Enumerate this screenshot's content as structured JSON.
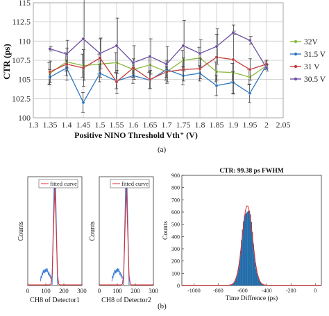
{
  "colors": {
    "s32": "#8bb83e",
    "s31_5": "#2e78c2",
    "s31": "#c43b3b",
    "s30_5": "#6b4ea0",
    "bar": "#2b7bbd",
    "fit": "#e32b2b",
    "noise": "#3f7fd6"
  },
  "captions": {
    "a": "(a)",
    "b": "(b)"
  },
  "chart_data": [
    {
      "type": "line",
      "title": "",
      "xlabel": "Positive NINO Threshold Vth⁺ (V)",
      "ylabel": "CTR (ps)",
      "xlim": [
        1.3,
        2.05
      ],
      "ylim": [
        100,
        115
      ],
      "x_ticks": [
        "1.3",
        "1.35",
        "1.4",
        "1.45",
        "1.5",
        "1.55",
        "1.6",
        "1.65",
        "1.7",
        "1.75",
        "1.8",
        "1.85",
        "1.9",
        "1.95",
        "2",
        "2.05"
      ],
      "y_ticks": [
        "100",
        "102.5",
        "105",
        "107.5",
        "110",
        "112.5",
        "115"
      ],
      "grid": true,
      "legend_position": "right",
      "x": [
        1.35,
        1.4,
        1.45,
        1.5,
        1.55,
        1.6,
        1.65,
        1.7,
        1.75,
        1.8,
        1.85,
        1.9,
        1.95,
        2.0
      ],
      "series": [
        {
          "name": "32V",
          "color_key": "s32",
          "values": [
            105.8,
            107.3,
            106.8,
            107.0,
            107.2,
            106.3,
            106.9,
            106.0,
            107.5,
            107.8,
            106.0,
            105.9,
            105.3,
            106.8
          ],
          "err": [
            1.4,
            1.2,
            1.5,
            1.3,
            1.3,
            1.0,
            1.0,
            1.1,
            1.3,
            1.4,
            1.3,
            1.2,
            1.0,
            0.5
          ]
        },
        {
          "name": "31.5 V",
          "color_key": "s31_5",
          "values": [
            105.3,
            106.5,
            102.0,
            105.8,
            104.8,
            105.5,
            104.9,
            106.3,
            105.5,
            105.8,
            104.2,
            104.6,
            103.2,
            106.9
          ],
          "err": [
            1.0,
            1.0,
            1.3,
            1.1,
            1.0,
            1.0,
            1.1,
            1.0,
            1.2,
            1.0,
            1.3,
            1.4,
            1.2,
            0.6
          ]
        },
        {
          "name": "31 V",
          "color_key": "s31",
          "values": [
            106.0,
            107.0,
            106.5,
            107.8,
            104.7,
            106.5,
            105.0,
            106.0,
            106.3,
            106.4,
            107.9,
            107.6,
            106.3,
            107.0
          ],
          "err": [
            1.4,
            2.1,
            2.4,
            2.5,
            1.5,
            1.2,
            1.2,
            1.5,
            1.5,
            1.3,
            3.0,
            4.5,
            1.4,
            0.5
          ]
        },
        {
          "name": "30.5 V",
          "color_key": "s30_5",
          "values": [
            109.0,
            108.3,
            110.3,
            108.4,
            109.4,
            107.2,
            108.0,
            107.0,
            109.4,
            108.4,
            109.3,
            111.1,
            110.1,
            106.5
          ],
          "err": [
            0.3,
            1.8,
            5.4,
            2.0,
            3.6,
            2.2,
            2.3,
            2.3,
            3.3,
            1.8,
            2.3,
            0.2,
            0.5,
            0.4
          ]
        }
      ]
    },
    {
      "type": "histogram",
      "xlabel": "CH8 of Detector1",
      "ylabel": "Counts",
      "xlim": [
        0,
        300
      ],
      "x_ticks": [
        "0",
        "100",
        "200",
        "300"
      ],
      "legend": "fitted curve",
      "noise_cluster_x": [
        70,
        130
      ],
      "peak_x": 150,
      "peak_fraction": 0.9
    },
    {
      "type": "histogram",
      "xlabel": "CH8 of Detector2",
      "ylabel": "Counts",
      "xlim": [
        0,
        300
      ],
      "x_ticks": [
        "0",
        "100",
        "200",
        "300"
      ],
      "legend": "fitted curve",
      "noise_cluster_x": [
        70,
        130
      ],
      "peak_x": 150,
      "peak_fraction": 0.9
    },
    {
      "type": "histogram",
      "title": "CTR: 99.38 ps FWHM",
      "xlabel": "Time Diffrence (ps)",
      "ylabel": "Counts",
      "xlim": [
        -1100,
        50
      ],
      "ylim": [
        0,
        900
      ],
      "x_ticks": [
        "-1000",
        "-800",
        "-600",
        "-400",
        "-200",
        "0"
      ],
      "y_ticks": [
        "0",
        "100",
        "200",
        "300",
        "400",
        "500",
        "600",
        "700",
        "800",
        "900"
      ],
      "center": -560,
      "fwhm": 99.38,
      "peak_count": 650
    }
  ]
}
